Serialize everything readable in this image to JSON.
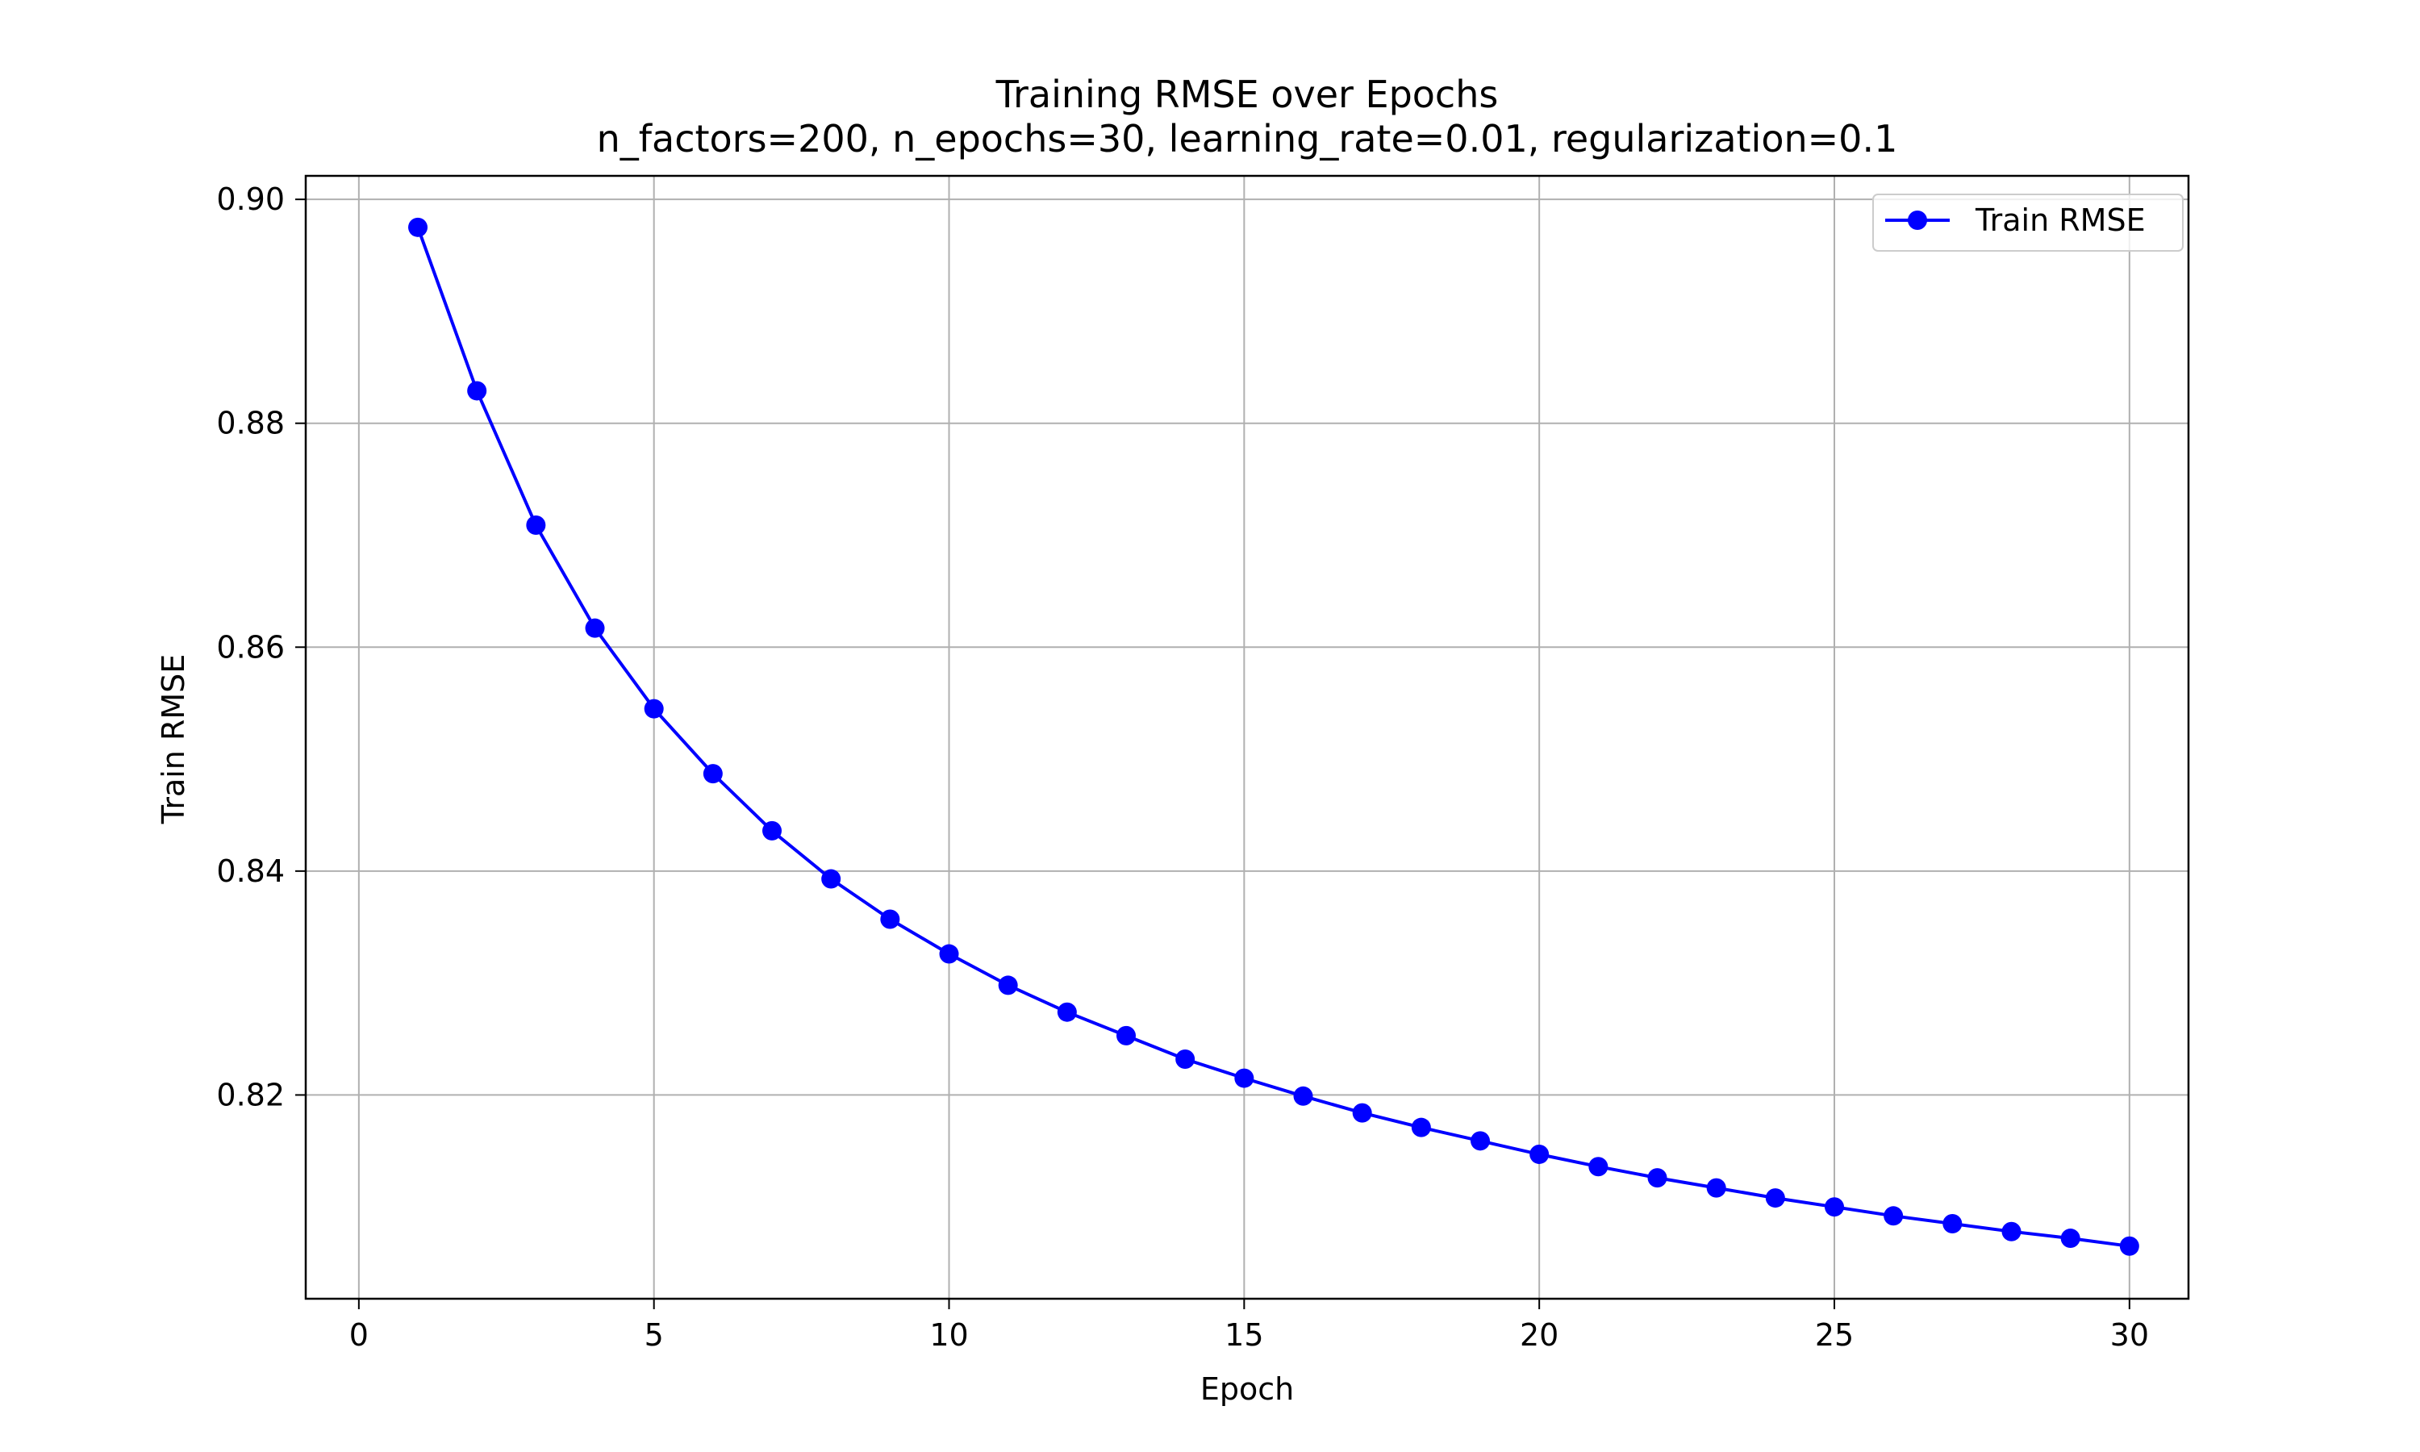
{
  "chart_data": {
    "type": "line",
    "title": "Training RMSE over Epochs",
    "subtitle": "n_factors=200, n_epochs=30, learning_rate=0.01, regularization=0.1",
    "xlabel": "Epoch",
    "ylabel": "Train RMSE",
    "xlim": [
      -0.9,
      31.0
    ],
    "ylim": [
      0.8018,
      0.9021
    ],
    "xticks": [
      0,
      5,
      10,
      15,
      20,
      25,
      30
    ],
    "xtick_labels": [
      "0",
      "5",
      "10",
      "15",
      "20",
      "25",
      "30"
    ],
    "yticks": [
      0.82,
      0.84,
      0.86,
      0.88,
      0.9
    ],
    "ytick_labels": [
      "0.82",
      "0.84",
      "0.86",
      "0.88",
      "0.90"
    ],
    "grid": true,
    "legend_position": "top-right",
    "series": [
      {
        "name": "Train RMSE",
        "color": "#0000ff",
        "marker": "circle",
        "x": [
          1,
          2,
          3,
          4,
          5,
          6,
          7,
          8,
          9,
          10,
          11,
          12,
          13,
          14,
          15,
          16,
          17,
          18,
          19,
          20,
          21,
          22,
          23,
          24,
          25,
          26,
          27,
          28,
          29,
          30
        ],
        "y": [
          0.8975,
          0.8829,
          0.8709,
          0.8617,
          0.8545,
          0.8487,
          0.8436,
          0.8393,
          0.8357,
          0.8326,
          0.8298,
          0.8274,
          0.8253,
          0.8232,
          0.8215,
          0.8199,
          0.8184,
          0.8171,
          0.8159,
          0.8147,
          0.8136,
          0.8126,
          0.8117,
          0.8108,
          0.81,
          0.8092,
          0.8085,
          0.8078,
          0.8072,
          0.8065
        ]
      }
    ]
  }
}
